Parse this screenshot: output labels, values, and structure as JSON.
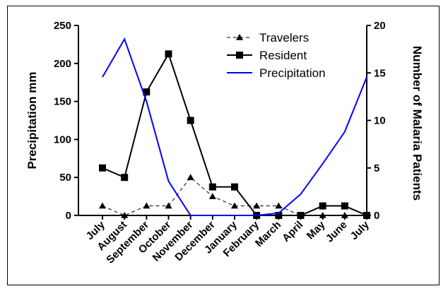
{
  "chart_data": {
    "type": "line",
    "categories": [
      "July",
      "August",
      "September",
      "October",
      "November",
      "December",
      "January",
      "February",
      "March",
      "April",
      "May",
      "June",
      "July"
    ],
    "ylabel_left": "Precipitation mm",
    "ylabel_right": "Number of Malaria Patients",
    "ylim_left": [
      0,
      250
    ],
    "ylim_right": [
      0,
      20
    ],
    "yticks_left": [
      0,
      50,
      100,
      150,
      200,
      250
    ],
    "yticks_right": [
      0,
      5,
      10,
      15,
      20
    ],
    "grid": false,
    "legend_position": "top-right",
    "series": [
      {
        "name": "Travelers",
        "axis": "right",
        "marker": "triangle",
        "line": "dashed",
        "color": "#000000",
        "values": [
          1,
          0,
          1,
          1,
          4,
          2,
          1,
          1,
          1,
          0,
          0,
          0,
          0
        ]
      },
      {
        "name": "Resident",
        "axis": "right",
        "marker": "square",
        "line": "solid",
        "color": "#000000",
        "values": [
          5,
          4,
          13,
          17,
          10,
          3,
          3,
          0,
          0,
          0,
          1,
          1,
          0
        ]
      },
      {
        "name": "Precipitation",
        "axis": "left",
        "marker": "none",
        "line": "solid",
        "color": "#0000ff",
        "values": [
          182,
          232,
          150,
          45,
          0,
          0,
          0,
          0,
          3,
          28,
          68,
          110,
          182
        ]
      }
    ]
  }
}
